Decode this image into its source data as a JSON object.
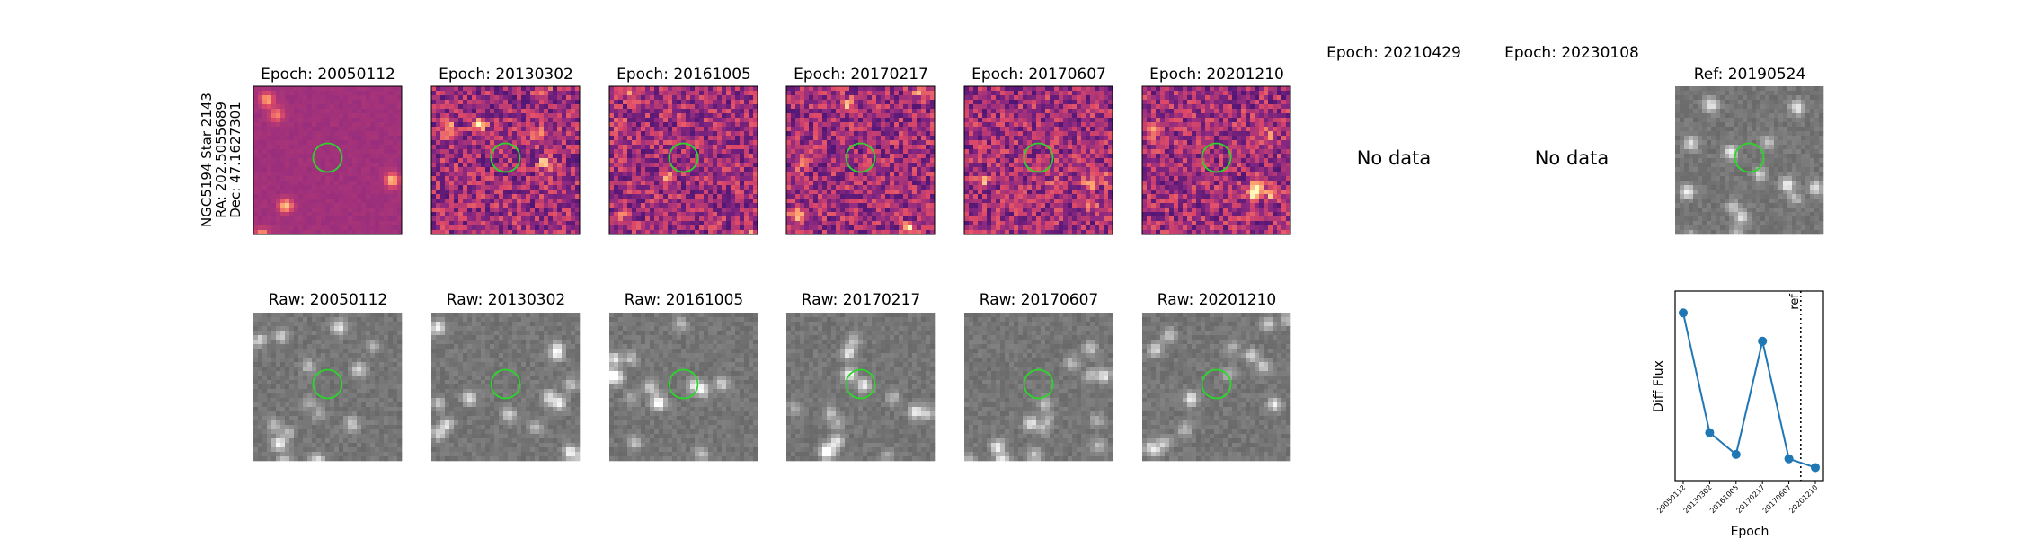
{
  "star_label": {
    "lines": [
      "NGC5194 Star 2143",
      "RA: 202.5055689",
      "Dec: 47.1627301"
    ]
  },
  "diff_titles": [
    "Epoch: 20050112",
    "Epoch: 20130302",
    "Epoch: 20161005",
    "Epoch: 20170217",
    "Epoch: 20170607",
    "Epoch: 20201210",
    "Epoch: 20210429",
    "Epoch: 20230108"
  ],
  "no_data_label": "No data",
  "ref_title": "Ref: 20190524",
  "raw_titles": [
    "Raw: 20050112",
    "Raw: 20130302",
    "Raw: 20161005",
    "Raw: 20170217",
    "Raw: 20170607",
    "Raw: 20201210"
  ],
  "colors": {
    "aperture": "#2bd62b",
    "line": "#1f77b4",
    "magma_dark": "#3b0f70",
    "magma_mid": "#b5367a",
    "magma_bright": "#fcb07a",
    "raw_gray": "#7f7f7f"
  },
  "chart_data": {
    "type": "line",
    "x": [
      "20050112",
      "20130302",
      "20161005",
      "20170217",
      "20170607",
      "20201210"
    ],
    "values": [
      0.85,
      0.3,
      0.2,
      0.72,
      0.18,
      0.14
    ],
    "ylim": [
      0.08,
      0.95
    ],
    "xlabel": "Epoch",
    "ylabel": "Diff Flux",
    "ref_marker_label": "ref",
    "ref_marker_between": [
      "20170607",
      "20201210"
    ],
    "grid": false
  }
}
